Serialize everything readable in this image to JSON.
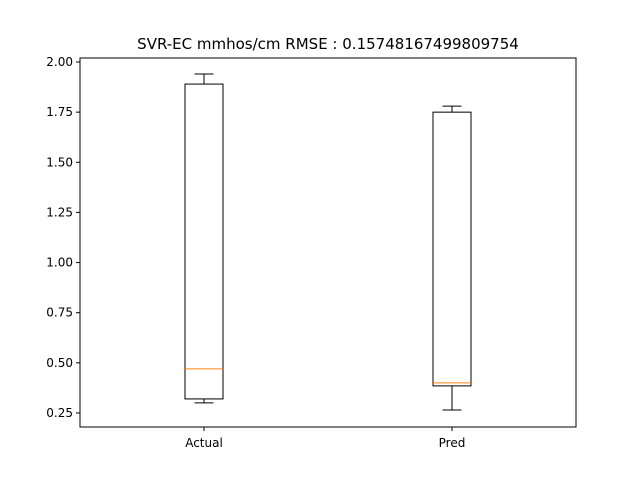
{
  "chart_data": {
    "type": "boxplot",
    "title": "SVR-EC mmhos/cm RMSE : 0.15748167499809754",
    "xlabel": "",
    "ylabel": "",
    "categories": [
      "Actual",
      "Pred"
    ],
    "boxes": [
      {
        "name": "Actual",
        "whisker_low": 0.3,
        "q1": 0.32,
        "median": 0.47,
        "q3": 1.89,
        "whisker_high": 1.94
      },
      {
        "name": "Pred",
        "whisker_low": 0.265,
        "q1": 0.385,
        "median": 0.4,
        "q3": 1.75,
        "whisker_high": 1.78
      }
    ],
    "ylim": [
      0.18,
      2.02
    ],
    "yticks": [
      "0.25",
      "0.50",
      "0.75",
      "1.00",
      "1.25",
      "1.50",
      "1.75",
      "2.00"
    ],
    "grid": false,
    "colors": {
      "box": "#000000",
      "median": "#ff7f0e",
      "background": "#ffffff"
    }
  }
}
